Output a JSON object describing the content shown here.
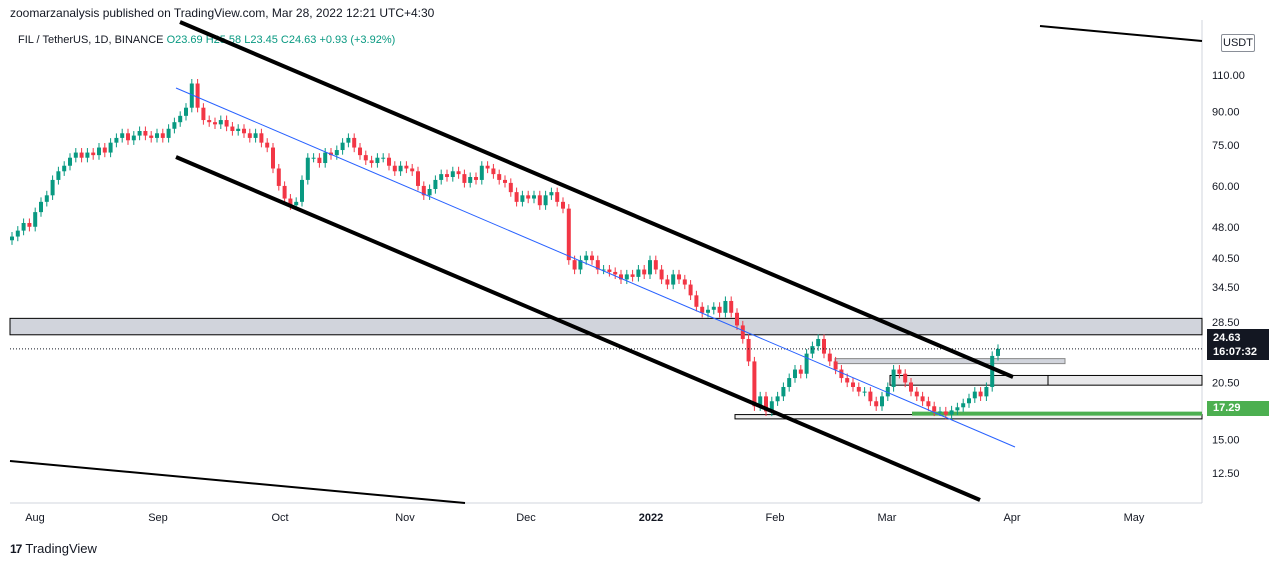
{
  "header": {
    "published": "zoomarzanalysis published on TradingView.com, Mar 28, 2022 12:21 UTC+4:30",
    "symbol": "FIL / TetherUS, 1D, BINANCE",
    "ohlc": "O23.69 H25.58 L23.45 C24.63 +0.93 (+3.92%)"
  },
  "currency_button": "USDT",
  "price_tags": {
    "last_price": "24.63",
    "countdown": "16:07:32",
    "support_level": "17.29"
  },
  "footer": {
    "brand": "TradingView",
    "logo_glyph": "17"
  },
  "colors": {
    "up": "#089981",
    "down": "#f23645",
    "support": "#4caf50",
    "zone": "#d1d4dc",
    "channel": "#000000",
    "trend": "#2962ff"
  },
  "chart_data": {
    "type": "candlestick",
    "y_scale": "log",
    "ylim": [
      11,
      112
    ],
    "x_tick_labels": [
      "Aug",
      "Sep",
      "Oct",
      "Nov",
      "Dec",
      "2022",
      "Feb",
      "Mar",
      "Apr",
      "May"
    ],
    "y_tick_labels": [
      "110.00",
      "90.00",
      "75.00",
      "60.00",
      "48.00",
      "40.50",
      "34.50",
      "28.50",
      "20.50",
      "15.00",
      "12.50"
    ],
    "y_ticks": [
      110,
      90,
      75,
      60,
      48,
      40.5,
      34.5,
      28.5,
      20.5,
      15,
      12.5
    ],
    "last_price": 24.63,
    "support_level": 17.29,
    "horizontal_zones": [
      {
        "from": 26.6,
        "to": 29.1
      },
      {
        "from": 20.2,
        "to": 21.3
      }
    ],
    "closes": [
      45.5,
      47,
      49,
      48,
      52,
      55,
      57,
      62,
      65,
      67,
      70,
      72,
      70,
      72,
      71,
      74,
      72,
      76,
      78,
      80,
      77,
      79,
      81,
      79,
      78,
      80,
      78,
      82,
      85,
      88,
      92,
      105,
      92,
      86,
      85,
      84,
      86,
      83,
      81,
      82,
      80,
      78,
      80,
      76,
      74,
      66,
      60,
      56,
      54,
      55,
      62,
      70,
      70,
      68,
      72,
      71,
      73,
      76,
      78,
      74,
      71,
      69,
      68,
      70,
      70,
      67,
      65,
      67,
      66,
      65,
      60,
      57,
      59,
      62,
      64,
      63,
      65,
      64,
      61,
      63,
      62,
      67,
      66,
      64,
      62,
      61,
      58,
      55,
      57,
      56,
      57,
      54,
      57,
      58,
      55,
      53,
      40,
      38,
      40,
      41,
      40,
      38,
      38,
      37.5,
      37,
      36,
      37,
      36.5,
      38,
      37,
      40,
      38,
      36,
      35,
      37,
      36,
      35,
      33,
      31,
      30,
      30.5,
      31,
      30,
      32,
      30,
      28,
      26,
      23,
      18,
      19,
      17.5,
      18.5,
      19,
      20,
      21,
      22,
      21.5,
      24,
      25,
      26,
      24,
      23,
      22,
      21,
      20.5,
      20,
      19.5,
      19.5,
      18.5,
      18,
      19,
      20,
      22,
      21.5,
      20.5,
      19.5,
      19,
      18.5,
      18,
      17.5,
      17.5,
      17.2,
      17.6,
      17.9,
      18.3,
      18.8,
      19.5,
      19,
      20,
      23.7,
      24.63
    ]
  }
}
